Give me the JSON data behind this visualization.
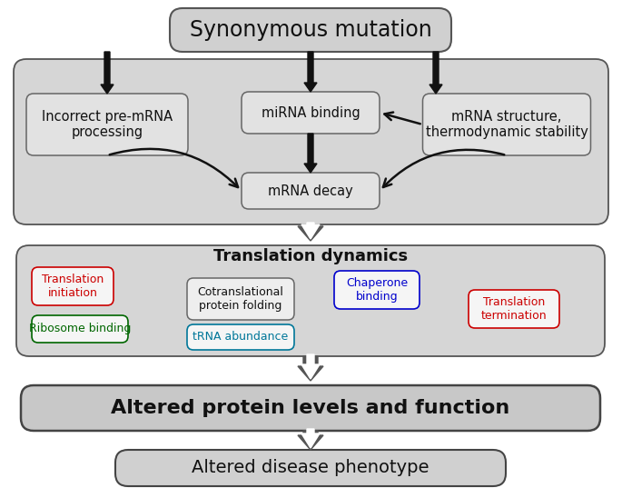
{
  "bg_color": "#ffffff",
  "title": "Synonymous mutation",
  "box1_text": "Incorrect pre-mRNA\nprocessing",
  "box2_text": "miRNA binding",
  "box3_text": "mRNA structure,\nthermodynamic stability",
  "box4_text": "mRNA decay",
  "trans_title": "Translation dynamics",
  "sub1_text": "Translation\ninitiation",
  "sub1_color": "#cc0000",
  "sub1_ec": "#cc0000",
  "sub2_text": "Ribosome binding",
  "sub2_color": "#006600",
  "sub2_ec": "#006600",
  "sub3_text": "Cotranslational\nprotein folding",
  "sub3_color": "#111111",
  "sub3_ec": "#666666",
  "sub4_text": "Chaperone\nbinding",
  "sub4_color": "#0000cc",
  "sub4_ec": "#0000cc",
  "sub5_text": "tRNA abundance",
  "sub5_color": "#007799",
  "sub5_ec": "#007799",
  "sub6_text": "Translation\ntermination",
  "sub6_color": "#cc0000",
  "sub6_ec": "#cc0000",
  "bottom1_text": "Altered protein levels and function",
  "bottom2_text": "Altered disease phenotype",
  "outer_fc": "#d6d6d6",
  "inner_fc": "#e2e2e2",
  "trans_fc": "#d6d6d6",
  "sub_fc": "#f5f5f5",
  "bot1_fc": "#c8c8c8",
  "bot2_fc": "#d0d0d0",
  "ec_main": "#555555",
  "arrow_color": "#333333",
  "double_arrow_color": "#555555"
}
